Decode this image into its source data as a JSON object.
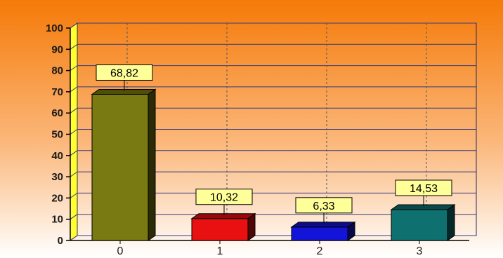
{
  "chart_data": {
    "type": "bar",
    "title": "",
    "xlabel": "",
    "ylabel": "",
    "categories": [
      "0",
      "1",
      "2",
      "3"
    ],
    "values": [
      68.82,
      10.32,
      6.33,
      14.53
    ],
    "value_labels": [
      "68,82",
      "10,32",
      "6,33",
      "14,53"
    ],
    "ylim": [
      0,
      100
    ],
    "yticks": [
      0,
      10,
      20,
      30,
      40,
      50,
      60,
      70,
      80,
      90,
      100
    ],
    "ytick_labels": [
      "0",
      "10",
      "20",
      "30",
      "40",
      "50",
      "60",
      "70",
      "80",
      "90",
      "100"
    ],
    "grid": true,
    "bar_3d": true,
    "colors": {
      "bars": [
        "#7a7a12",
        "#e81010",
        "#1414d8",
        "#0f7070"
      ],
      "background_top": "#f57a08",
      "background_bottom": "#ffffff",
      "y_axis_wall": "#ffff33",
      "label_box": "#ffff99",
      "gridline": "#3a3a7a"
    }
  }
}
